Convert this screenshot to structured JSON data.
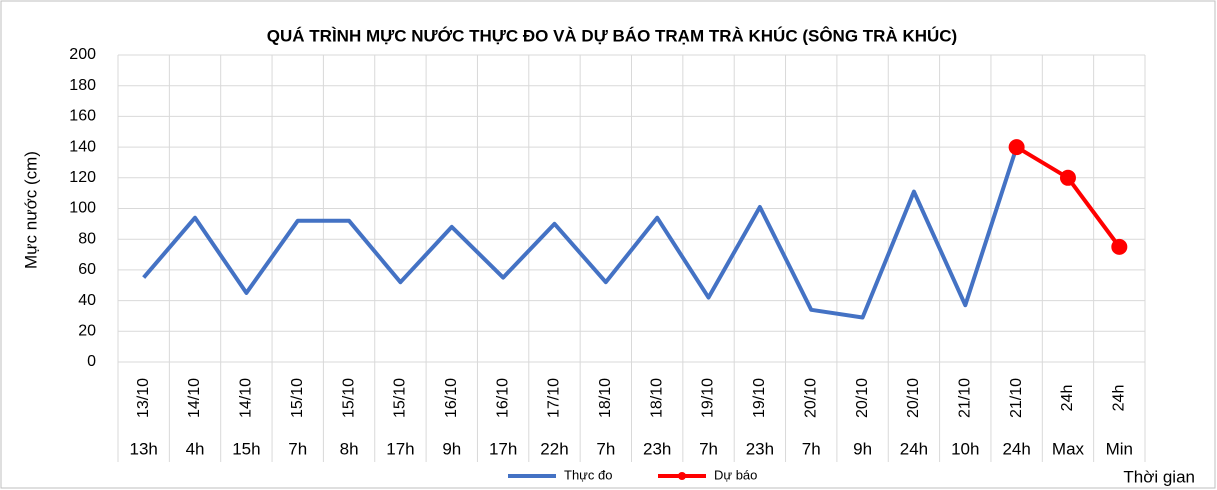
{
  "chart_data": {
    "type": "line",
    "title": "QUÁ TRÌNH MỰC NƯỚC THỰC ĐO VÀ DỰ BÁO TRẠM TRÀ KHÚC (SÔNG TRÀ KHÚC)",
    "y_label": "Mực nước (cm)",
    "x_label": "Thời gian",
    "categories": [
      {
        "date": "13/10",
        "time": "13h"
      },
      {
        "date": "14/10",
        "time": "4h"
      },
      {
        "date": "14/10",
        "time": "15h"
      },
      {
        "date": "15/10",
        "time": "7h"
      },
      {
        "date": "15/10",
        "time": "8h"
      },
      {
        "date": "15/10",
        "time": "17h"
      },
      {
        "date": "16/10",
        "time": "9h"
      },
      {
        "date": "16/10",
        "time": "17h"
      },
      {
        "date": "17/10",
        "time": "22h"
      },
      {
        "date": "18/10",
        "time": "7h"
      },
      {
        "date": "18/10",
        "time": "23h"
      },
      {
        "date": "19/10",
        "time": "7h"
      },
      {
        "date": "19/10",
        "time": "23h"
      },
      {
        "date": "20/10",
        "time": "7h"
      },
      {
        "date": "20/10",
        "time": "9h"
      },
      {
        "date": "20/10",
        "time": "24h"
      },
      {
        "date": "21/10",
        "time": "10h"
      },
      {
        "date": "21/10",
        "time": "24h"
      },
      {
        "date": "24h",
        "time": "Max"
      },
      {
        "date": "24h",
        "time": "Min"
      }
    ],
    "series": [
      {
        "name": "Thực đo",
        "color": "#4472c4",
        "marker": false,
        "values": [
          55,
          94,
          45,
          92,
          92,
          52,
          88,
          55,
          90,
          52,
          94,
          42,
          101,
          34,
          29,
          111,
          37,
          140,
          null,
          null
        ]
      },
      {
        "name": "Dự báo",
        "color": "#ff0000",
        "marker": true,
        "values": [
          null,
          null,
          null,
          null,
          null,
          null,
          null,
          null,
          null,
          null,
          null,
          null,
          null,
          null,
          null,
          null,
          null,
          140,
          120,
          75
        ]
      }
    ],
    "ylim": [
      0,
      200
    ],
    "yticks": [
      0,
      20,
      40,
      60,
      80,
      100,
      120,
      140,
      160,
      180,
      200
    ],
    "grid": true,
    "legend": "bottom"
  }
}
